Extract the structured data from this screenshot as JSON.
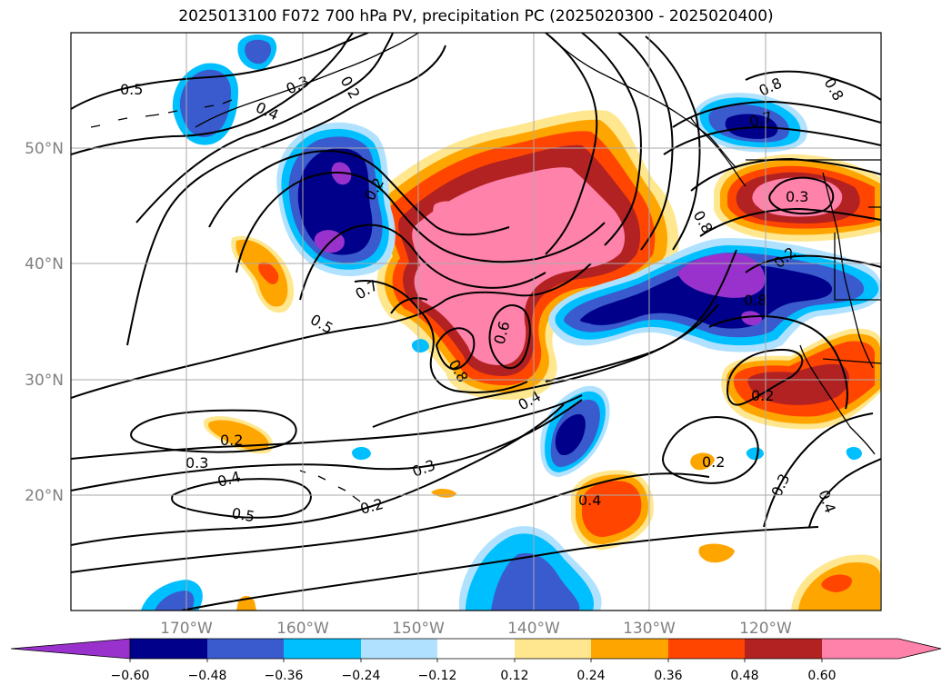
{
  "title": "2025013100 F072 700 hPa PV, precipitation PC (2025020300 - 2025020400)",
  "map": {
    "lat_labels": [
      "50°N",
      "40°N",
      "30°N",
      "20°N"
    ],
    "lon_labels": [
      "170°W",
      "160°W",
      "150°W",
      "140°W",
      "130°W",
      "120°W"
    ],
    "contour_labels": [
      "0.5",
      "0.3",
      "0.2",
      "0.4",
      "0.2",
      "0.7",
      "0.5",
      "0.8",
      "0.6",
      "0.4",
      "0.2",
      "0.3",
      "0.4",
      "0.5",
      "0.3",
      "0.2",
      "0.4",
      "0.8",
      "0.7",
      "0.8",
      "0.3",
      "0.8",
      "0.2",
      "0.2",
      "0.2",
      "0.3",
      "0.4",
      "0.8"
    ],
    "precip_levels": [
      "-0.60",
      "-0.48",
      "-0.36",
      "-0.24",
      "-0.12",
      "0.12",
      "0.24",
      "0.36",
      "0.48",
      "0.60"
    ],
    "colors": {
      "neg_extend": "#9932cc",
      "neg_060": "#00008b",
      "neg_048": "#3a5bcd",
      "neg_036": "#00bfff",
      "neg_024": "#b0e2ff",
      "neutral": "#ffffff",
      "pos_012": "#ffe78f",
      "pos_024": "#ffa500",
      "pos_036": "#ff4500",
      "pos_048": "#b22222",
      "pos_extend": "#ff82ab"
    }
  },
  "colorbar": {
    "tick_labels": [
      "−0.60",
      "−0.48",
      "−0.36",
      "−0.24",
      "−0.12",
      "0.12",
      "0.24",
      "0.36",
      "0.48",
      "0.60"
    ]
  }
}
